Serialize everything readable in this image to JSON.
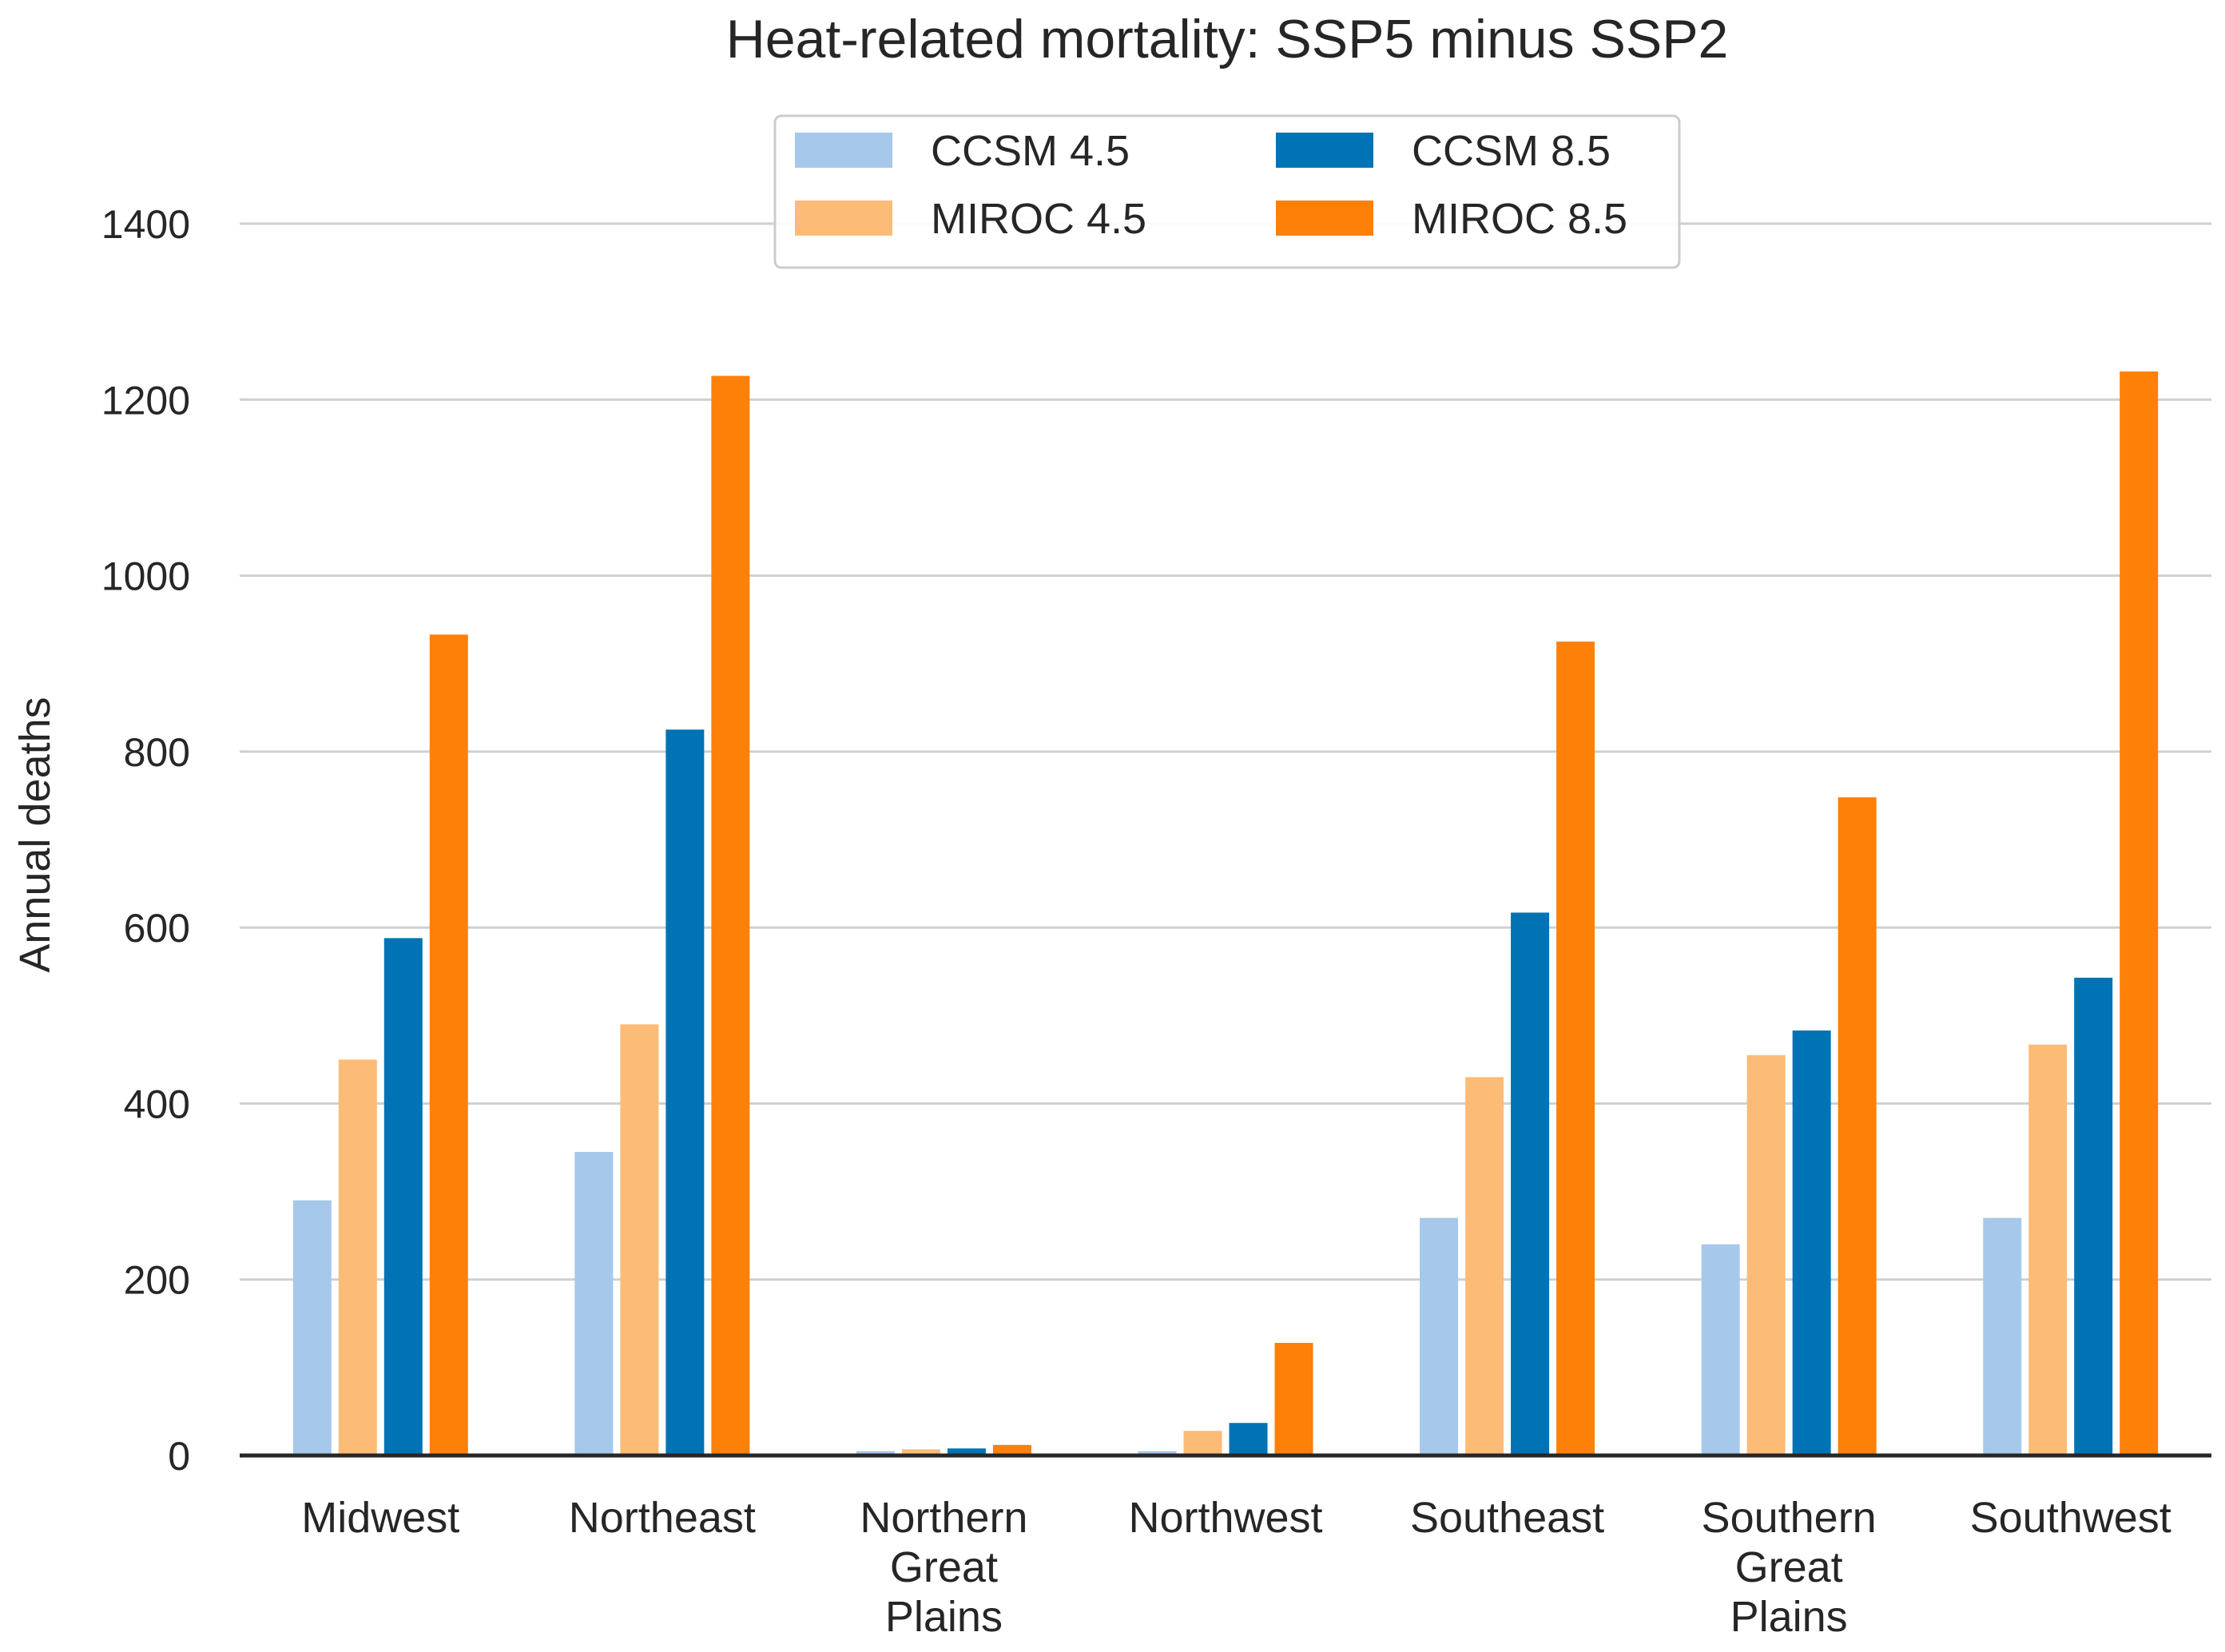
{
  "chart_data": {
    "type": "bar",
    "title": "Heat-related mortality: SSP5 minus SSP2",
    "xlabel": "",
    "ylabel": "Annual deaths",
    "ylim": [
      0,
      1450
    ],
    "yticks": [
      0,
      200,
      400,
      600,
      800,
      1000,
      1200,
      1400
    ],
    "grid": "horizontal",
    "legend_position": "top-center",
    "categories": [
      [
        "Midwest"
      ],
      [
        "Northeast"
      ],
      [
        "Northern",
        "Great",
        "Plains"
      ],
      [
        "Northwest"
      ],
      [
        "Southeast"
      ],
      [
        "Southern",
        "Great",
        "Plains"
      ],
      [
        "Southwest"
      ]
    ],
    "series": [
      {
        "name": "CCSM 4.5",
        "color": "#a6c8ea",
        "values": [
          290,
          345,
          5,
          5,
          270,
          240,
          270
        ]
      },
      {
        "name": "MIROC 4.5",
        "color": "#fdbb78",
        "values": [
          450,
          490,
          7,
          28,
          430,
          455,
          467
        ]
      },
      {
        "name": "CCSM 8.5",
        "color": "#0073b5",
        "values": [
          588,
          825,
          8,
          37,
          617,
          483,
          543
        ]
      },
      {
        "name": "MIROC 8.5",
        "color": "#fd8009",
        "values": [
          933,
          1227,
          12,
          128,
          925,
          748,
          1232
        ]
      }
    ]
  }
}
